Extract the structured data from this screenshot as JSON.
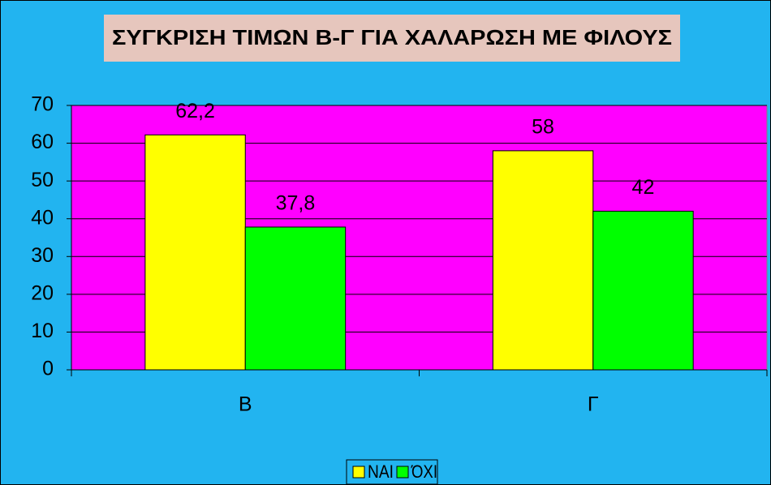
{
  "chart_data": {
    "type": "bar",
    "title": "ΣΥΓΚΡΙΣΗ ΤΙΜΩΝ Β-Γ ΓΙΑ ΧΑΛΑΡΩΣΗ ΜΕ ΦΙΛΟΥΣ",
    "categories": [
      "Β",
      "Γ"
    ],
    "series": [
      {
        "name": "ΝΑΙ",
        "color": "#ffff00",
        "values": [
          62.2,
          58
        ],
        "value_labels": [
          "62,2",
          "58"
        ]
      },
      {
        "name": "ΌΧΙ",
        "color": "#00ff00",
        "values": [
          37.8,
          42
        ],
        "value_labels": [
          "37,8",
          "42"
        ]
      }
    ],
    "ylim": [
      0,
      70
    ],
    "yticks": [
      0,
      10,
      20,
      30,
      40,
      50,
      60,
      70
    ],
    "grid": true,
    "legend": "bottom",
    "plot_background": "#ff00ff"
  }
}
